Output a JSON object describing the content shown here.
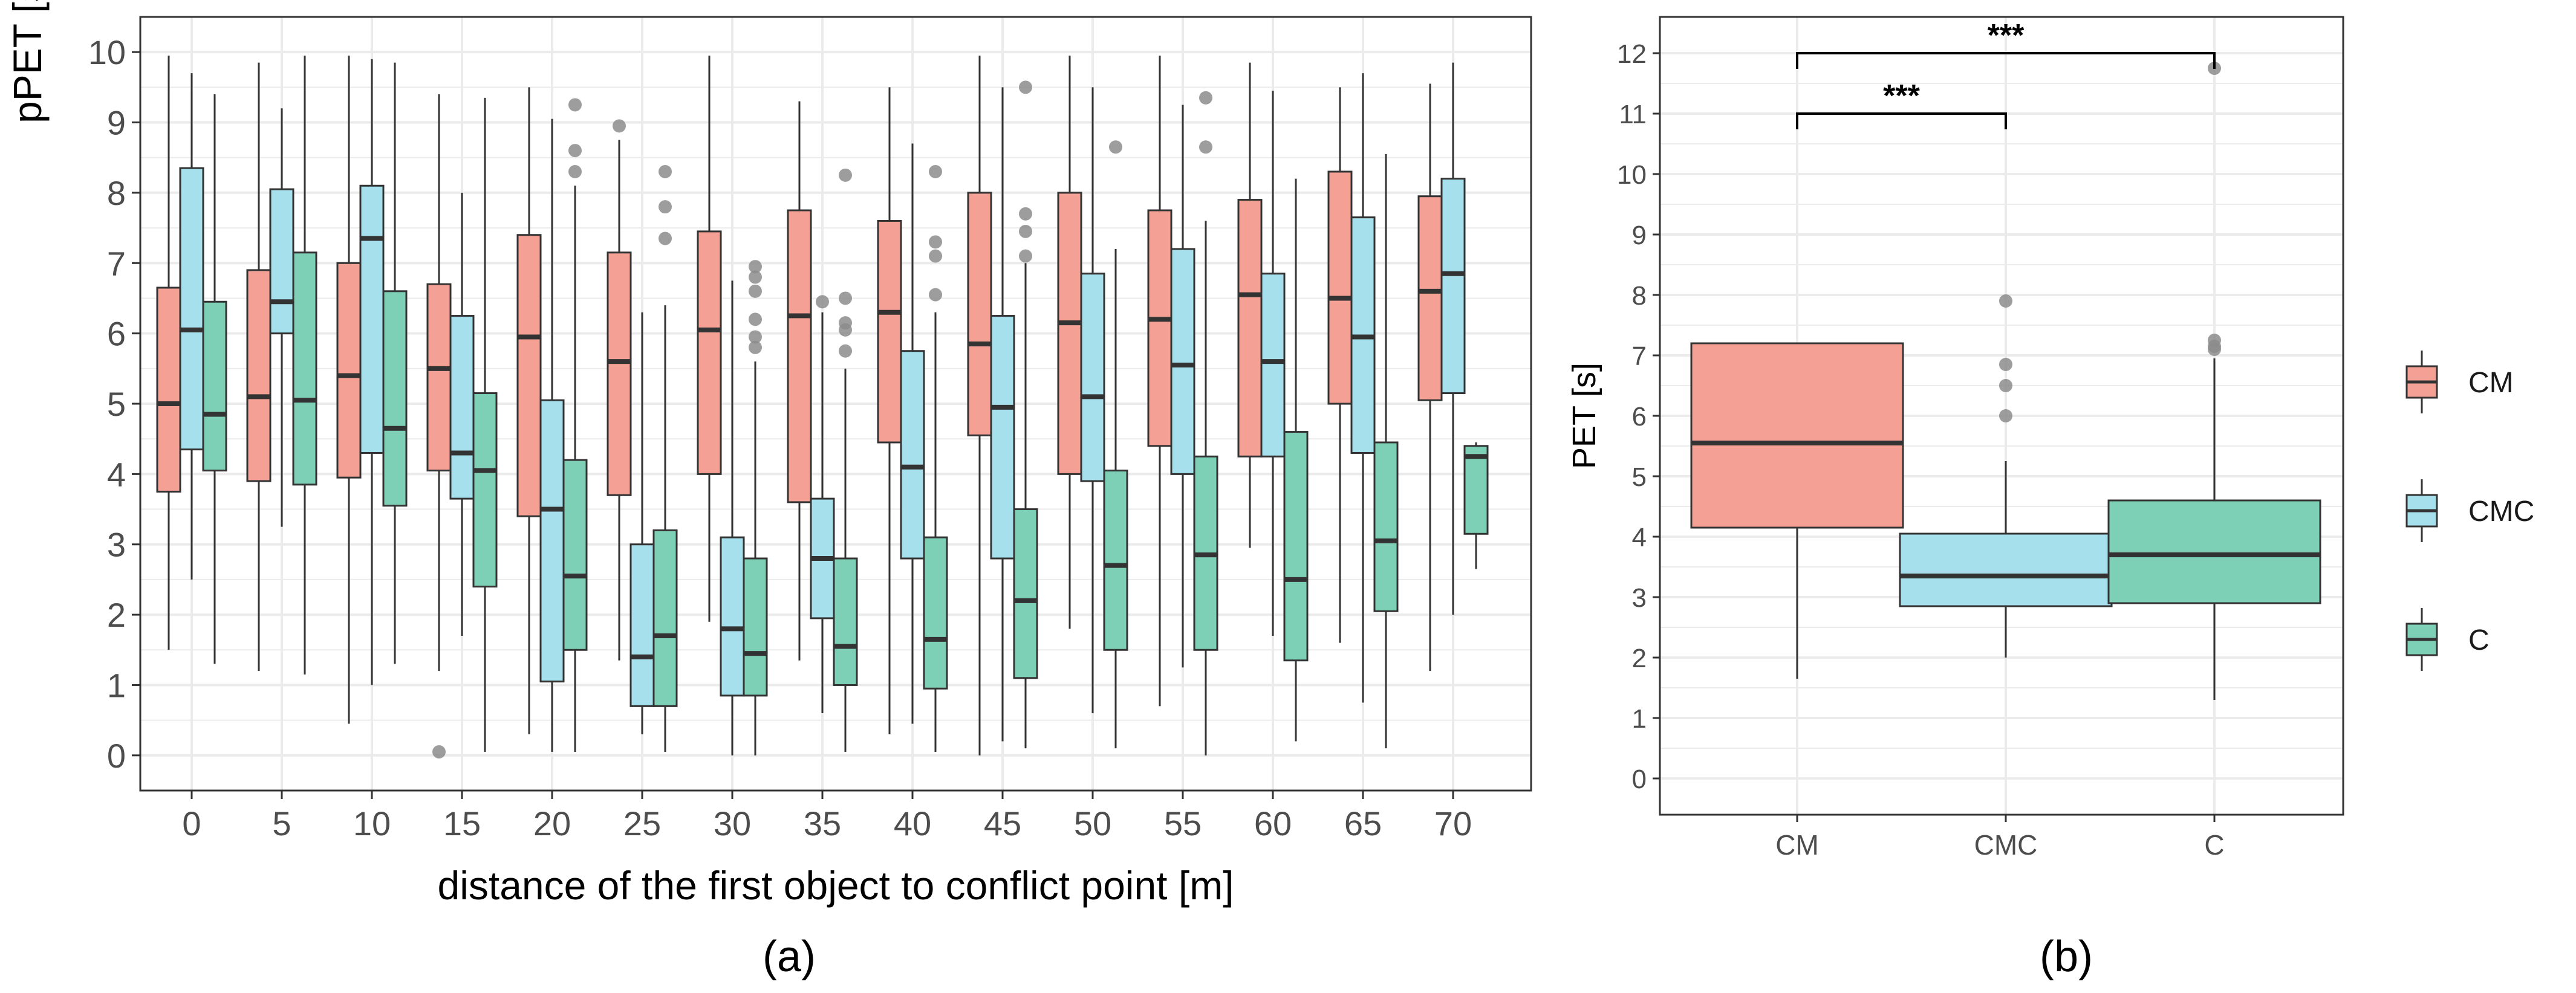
{
  "colors": {
    "CM": "#f4a095",
    "CMC": "#a6e0ec",
    "C": "#7dd0b6",
    "grid": "#ebebeb",
    "panel_border": "#333333",
    "whisker": "#333333",
    "outlier": "#8c8c8c"
  },
  "legend": {
    "items": [
      "CM",
      "CMC",
      "C"
    ]
  },
  "chart_data": [
    {
      "type": "boxplot",
      "panel_label": "(a)",
      "xlabel": "distance of the first object to conflict point [m]",
      "ylabel": "pPET [s]",
      "ylim": [
        -0.5,
        10.5
      ],
      "yticks": [
        0,
        1,
        2,
        3,
        4,
        5,
        6,
        7,
        8,
        9,
        10
      ],
      "categories": [
        "0",
        "5",
        "10",
        "15",
        "20",
        "25",
        "30",
        "35",
        "40",
        "45",
        "50",
        "55",
        "60",
        "65",
        "70"
      ],
      "series": [
        {
          "name": "CM",
          "boxes": [
            {
              "min": 1.5,
              "q1": 3.75,
              "median": 5.0,
              "q3": 6.65,
              "max": 9.95,
              "outliers": []
            },
            {
              "min": 1.2,
              "q1": 3.9,
              "median": 5.1,
              "q3": 6.9,
              "max": 9.85,
              "outliers": []
            },
            {
              "min": 0.45,
              "q1": 3.95,
              "median": 5.4,
              "q3": 7.0,
              "max": 9.95,
              "outliers": []
            },
            {
              "min": 1.2,
              "q1": 4.05,
              "median": 5.5,
              "q3": 6.7,
              "max": 9.4,
              "outliers": [
                0.05
              ]
            },
            {
              "min": 0.3,
              "q1": 3.4,
              "median": 5.95,
              "q3": 7.4,
              "max": 9.5,
              "outliers": []
            },
            {
              "min": 1.35,
              "q1": 3.7,
              "median": 5.6,
              "q3": 7.15,
              "max": 8.75,
              "outliers": [
                8.95
              ]
            },
            {
              "min": 1.9,
              "q1": 4.0,
              "median": 6.05,
              "q3": 7.45,
              "max": 9.95,
              "outliers": []
            },
            {
              "min": 1.35,
              "q1": 3.6,
              "median": 6.25,
              "q3": 7.75,
              "max": 9.3,
              "outliers": []
            },
            {
              "min": 0.3,
              "q1": 4.45,
              "median": 6.3,
              "q3": 7.6,
              "max": 9.5,
              "outliers": []
            },
            {
              "min": 0.0,
              "q1": 4.55,
              "median": 5.85,
              "q3": 8.0,
              "max": 9.95,
              "outliers": []
            },
            {
              "min": 1.8,
              "q1": 4.0,
              "median": 6.15,
              "q3": 8.0,
              "max": 9.95,
              "outliers": []
            },
            {
              "min": 0.7,
              "q1": 4.4,
              "median": 6.2,
              "q3": 7.75,
              "max": 9.95,
              "outliers": []
            },
            {
              "min": 2.95,
              "q1": 4.25,
              "median": 6.55,
              "q3": 7.9,
              "max": 9.85,
              "outliers": []
            },
            {
              "min": 1.6,
              "q1": 5.0,
              "median": 6.5,
              "q3": 8.3,
              "max": 9.5,
              "outliers": []
            },
            {
              "min": 1.2,
              "q1": 5.05,
              "median": 6.6,
              "q3": 7.95,
              "max": 9.55,
              "outliers": []
            }
          ]
        },
        {
          "name": "CMC",
          "boxes": [
            {
              "min": 2.5,
              "q1": 4.35,
              "median": 6.05,
              "q3": 8.35,
              "max": 9.7,
              "outliers": []
            },
            {
              "min": 3.25,
              "q1": 6.0,
              "median": 6.45,
              "q3": 8.05,
              "max": 9.2,
              "outliers": []
            },
            {
              "min": 1.0,
              "q1": 4.3,
              "median": 7.35,
              "q3": 8.1,
              "max": 9.9,
              "outliers": []
            },
            {
              "min": 1.7,
              "q1": 3.65,
              "median": 4.3,
              "q3": 6.25,
              "max": 8.0,
              "outliers": []
            },
            {
              "min": 0.05,
              "q1": 1.05,
              "median": 3.5,
              "q3": 5.05,
              "max": 9.05,
              "outliers": []
            },
            {
              "min": 0.3,
              "q1": 0.7,
              "median": 1.4,
              "q3": 3.0,
              "max": 6.3,
              "outliers": []
            },
            {
              "min": 0.0,
              "q1": 0.85,
              "median": 1.8,
              "q3": 3.1,
              "max": 6.75,
              "outliers": []
            },
            {
              "min": 0.6,
              "q1": 1.95,
              "median": 2.8,
              "q3": 3.65,
              "max": 6.3,
              "outliers": [
                6.45
              ]
            },
            {
              "min": 0.45,
              "q1": 2.8,
              "median": 4.1,
              "q3": 5.75,
              "max": 8.7,
              "outliers": []
            },
            {
              "min": 0.2,
              "q1": 2.8,
              "median": 4.95,
              "q3": 6.25,
              "max": 9.5,
              "outliers": []
            },
            {
              "min": 0.6,
              "q1": 3.9,
              "median": 5.1,
              "q3": 6.85,
              "max": 9.5,
              "outliers": []
            },
            {
              "min": 1.25,
              "q1": 4.0,
              "median": 5.55,
              "q3": 7.2,
              "max": 9.25,
              "outliers": []
            },
            {
              "min": 1.7,
              "q1": 4.25,
              "median": 5.6,
              "q3": 6.85,
              "max": 9.45,
              "outliers": []
            },
            {
              "min": 0.75,
              "q1": 4.3,
              "median": 5.95,
              "q3": 7.65,
              "max": 9.7,
              "outliers": []
            },
            {
              "min": 2.0,
              "q1": 5.15,
              "median": 6.85,
              "q3": 8.2,
              "max": 9.85,
              "outliers": []
            }
          ]
        },
        {
          "name": "C",
          "boxes": [
            {
              "min": 1.3,
              "q1": 4.05,
              "median": 4.85,
              "q3": 6.45,
              "max": 9.4,
              "outliers": []
            },
            {
              "min": 1.15,
              "q1": 3.85,
              "median": 5.05,
              "q3": 7.15,
              "max": 9.95,
              "outliers": []
            },
            {
              "min": 1.3,
              "q1": 3.55,
              "median": 4.65,
              "q3": 6.6,
              "max": 9.85,
              "outliers": []
            },
            {
              "min": 0.05,
              "q1": 2.4,
              "median": 4.05,
              "q3": 5.15,
              "max": 9.35,
              "outliers": []
            },
            {
              "min": 0.05,
              "q1": 1.5,
              "median": 2.55,
              "q3": 4.2,
              "max": 8.1,
              "outliers": [
                8.3,
                8.6,
                9.25
              ]
            },
            {
              "min": 0.05,
              "q1": 0.7,
              "median": 1.7,
              "q3": 3.2,
              "max": 6.4,
              "outliers": [
                7.35,
                7.8,
                8.3
              ]
            },
            {
              "min": 0.0,
              "q1": 0.85,
              "median": 1.45,
              "q3": 2.8,
              "max": 5.6,
              "outliers": [
                5.8,
                5.95,
                6.2,
                6.6,
                6.8,
                6.95
              ]
            },
            {
              "min": 0.05,
              "q1": 1.0,
              "median": 1.55,
              "q3": 2.8,
              "max": 5.5,
              "outliers": [
                5.75,
                6.05,
                6.15,
                6.5,
                8.25
              ]
            },
            {
              "min": 0.05,
              "q1": 0.95,
              "median": 1.65,
              "q3": 3.1,
              "max": 6.3,
              "outliers": [
                6.55,
                7.1,
                7.3,
                8.3
              ]
            },
            {
              "min": 0.1,
              "q1": 1.1,
              "median": 2.2,
              "q3": 3.5,
              "max": 7.0,
              "outliers": [
                7.1,
                7.45,
                7.7,
                9.5
              ]
            },
            {
              "min": 0.1,
              "q1": 1.5,
              "median": 2.7,
              "q3": 4.05,
              "max": 7.2,
              "outliers": [
                8.65
              ]
            },
            {
              "min": 0.0,
              "q1": 1.5,
              "median": 2.85,
              "q3": 4.25,
              "max": 7.6,
              "outliers": [
                8.65,
                9.35
              ]
            },
            {
              "min": 0.2,
              "q1": 1.35,
              "median": 2.5,
              "q3": 4.6,
              "max": 8.2,
              "outliers": []
            },
            {
              "min": 0.1,
              "q1": 2.05,
              "median": 3.05,
              "q3": 4.45,
              "max": 8.55,
              "outliers": []
            },
            {
              "min": 2.65,
              "q1": 3.15,
              "median": 4.25,
              "q3": 4.4,
              "max": 4.45,
              "outliers": []
            }
          ]
        }
      ]
    },
    {
      "type": "boxplot",
      "panel_label": "(b)",
      "xlabel": "",
      "ylabel": "PET [s]",
      "ylim": [
        -0.6,
        12.6
      ],
      "yticks": [
        0,
        1,
        2,
        3,
        4,
        5,
        6,
        7,
        8,
        9,
        10,
        11,
        12
      ],
      "categories": [
        "CM",
        "CMC",
        "C"
      ],
      "boxes": [
        {
          "min": 1.65,
          "q1": 4.15,
          "median": 5.55,
          "q3": 7.2,
          "max": 7.2,
          "outliers": []
        },
        {
          "min": 2.0,
          "q1": 2.85,
          "median": 3.35,
          "q3": 4.05,
          "max": 5.25,
          "outliers": [
            6.0,
            6.5,
            6.85,
            7.9
          ]
        },
        {
          "min": 1.3,
          "q1": 2.9,
          "median": 3.7,
          "q3": 4.6,
          "max": 6.95,
          "outliers": [
            7.1,
            7.15,
            7.25,
            11.75
          ]
        }
      ],
      "annotations": [
        {
          "from": "CM",
          "to": "CMC",
          "y": 11.0,
          "label": "***"
        },
        {
          "from": "CM",
          "to": "C",
          "y": 12.0,
          "label": "***"
        }
      ]
    }
  ]
}
